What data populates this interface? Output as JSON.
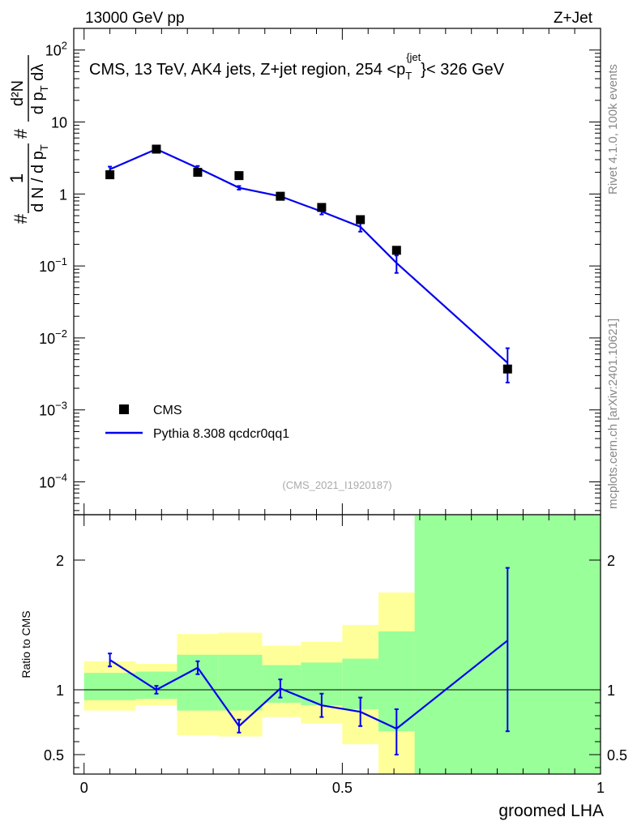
{
  "header": {
    "left": "13000 GeV pp",
    "right": "Z+Jet"
  },
  "side_labels": {
    "rivet": "Rivet 4.1.0,  100k events",
    "mcplots": "mcplots.cern.ch [arXiv:2401.10621]"
  },
  "colors": {
    "mc_line": "#0000ee",
    "band_outer": "#ffff99",
    "band_inner": "#99ff99",
    "data_marker": "#000000",
    "watermark": "#aaaaaa",
    "side_text": "#888888"
  },
  "chart_data": [
    {
      "type": "scatter",
      "scale": "log",
      "title": "CMS, 13 TeV, AK4 jets, Z+jet region, 254 <p_T^{jet}< 326 GeV",
      "title_parts": {
        "prefix": "CMS, 13 TeV, AK4 jets, Z+jet region, 254 <p",
        "sub": "T",
        "sup": "{jet",
        "suffix": "}< 326 GeV"
      },
      "ylabel": "1/N dN/dp_T d^2N/dp_T dλ",
      "ylabel_parts": {
        "hash1": "#",
        "one": "1",
        "den1_main": "d N / d p",
        "den1_sub": "T",
        "hash2": "#",
        "num2": "d²N",
        "den2_main": "d p",
        "den2_sub": "T",
        "den2_tail": " dλ"
      },
      "ylim": [
        3.5e-05,
        200
      ],
      "xlim": [
        -0.02,
        1.0
      ],
      "y_ticks": [
        {
          "value": 100,
          "base": "10",
          "exp": "2"
        },
        {
          "value": 10,
          "base": "10",
          "exp": ""
        },
        {
          "value": 1,
          "base": "1",
          "exp": ""
        },
        {
          "value": 0.1,
          "base": "10",
          "exp": "−1"
        },
        {
          "value": 0.01,
          "base": "10",
          "exp": "−2"
        },
        {
          "value": 0.001,
          "base": "10",
          "exp": "−3"
        },
        {
          "value": 0.0001,
          "base": "10",
          "exp": "−4"
        }
      ],
      "watermark": "(CMS_2021_I1920187)",
      "legend": [
        {
          "label": "CMS",
          "kind": "marker"
        },
        {
          "label": "Pythia 8.308 qcdcr0qq1",
          "kind": "line"
        }
      ],
      "series": [
        {
          "name": "CMS",
          "x": [
            0.05,
            0.14,
            0.22,
            0.3,
            0.38,
            0.46,
            0.535,
            0.605,
            0.82
          ],
          "y": [
            1.85,
            4.2,
            2.0,
            1.8,
            0.93,
            0.65,
            0.44,
            0.165,
            0.0037
          ]
        },
        {
          "name": "Pythia 8.308 qcdcr0qq1",
          "x": [
            0.05,
            0.14,
            0.22,
            0.3,
            0.38,
            0.46,
            0.535,
            0.605,
            0.82
          ],
          "y": [
            2.2,
            4.2,
            2.3,
            1.22,
            0.93,
            0.57,
            0.35,
            0.11,
            0.0045
          ],
          "err_low": [
            0.2,
            0.2,
            0.15,
            0.07,
            0.05,
            0.05,
            0.05,
            0.03,
            0.0021
          ],
          "err_high": [
            0.2,
            0.2,
            0.15,
            0.07,
            0.05,
            0.05,
            0.05,
            0.03,
            0.0027
          ]
        }
      ]
    },
    {
      "type": "line",
      "xlabel": "groomed LHA",
      "ylabel": "Ratio to CMS",
      "ylim": [
        0.35,
        2.35
      ],
      "xlim": [
        -0.02,
        1.0
      ],
      "x_ticks": [
        "0",
        "0.5",
        "1"
      ],
      "x_tick_values": [
        0,
        0.5,
        1
      ],
      "y_ticks": [
        "0.5",
        "1",
        "2"
      ],
      "y_tick_values": [
        0.5,
        1,
        2
      ],
      "reference_line": 1,
      "bands": {
        "bins": [
          0,
          0.1,
          0.18,
          0.26,
          0.345,
          0.42,
          0.5,
          0.57,
          0.64,
          1.0
        ],
        "outer_low": [
          0.84,
          0.88,
          0.65,
          0.64,
          0.79,
          0.74,
          0.58,
          0.35,
          0.35
        ],
        "outer_high": [
          1.22,
          1.2,
          1.43,
          1.44,
          1.34,
          1.37,
          1.5,
          1.75,
          2.35
        ],
        "inner_low": [
          0.92,
          0.93,
          0.84,
          0.84,
          0.9,
          0.88,
          0.85,
          0.68,
          0.35
        ],
        "inner_high": [
          1.13,
          1.14,
          1.27,
          1.27,
          1.19,
          1.21,
          1.24,
          1.45,
          2.35
        ]
      },
      "series": [
        {
          "name": "Pythia 8.308 qcdcr0qq1",
          "x": [
            0.05,
            0.14,
            0.22,
            0.3,
            0.38,
            0.46,
            0.535,
            0.605,
            0.82
          ],
          "y": [
            1.23,
            1.0,
            1.17,
            0.72,
            1.01,
            0.88,
            0.83,
            0.7,
            1.38
          ],
          "err_low": [
            0.05,
            0.03,
            0.05,
            0.05,
            0.07,
            0.09,
            0.11,
            0.2,
            0.7
          ],
          "err_high": [
            0.05,
            0.03,
            0.05,
            0.05,
            0.07,
            0.09,
            0.11,
            0.15,
            0.56
          ]
        }
      ]
    }
  ]
}
